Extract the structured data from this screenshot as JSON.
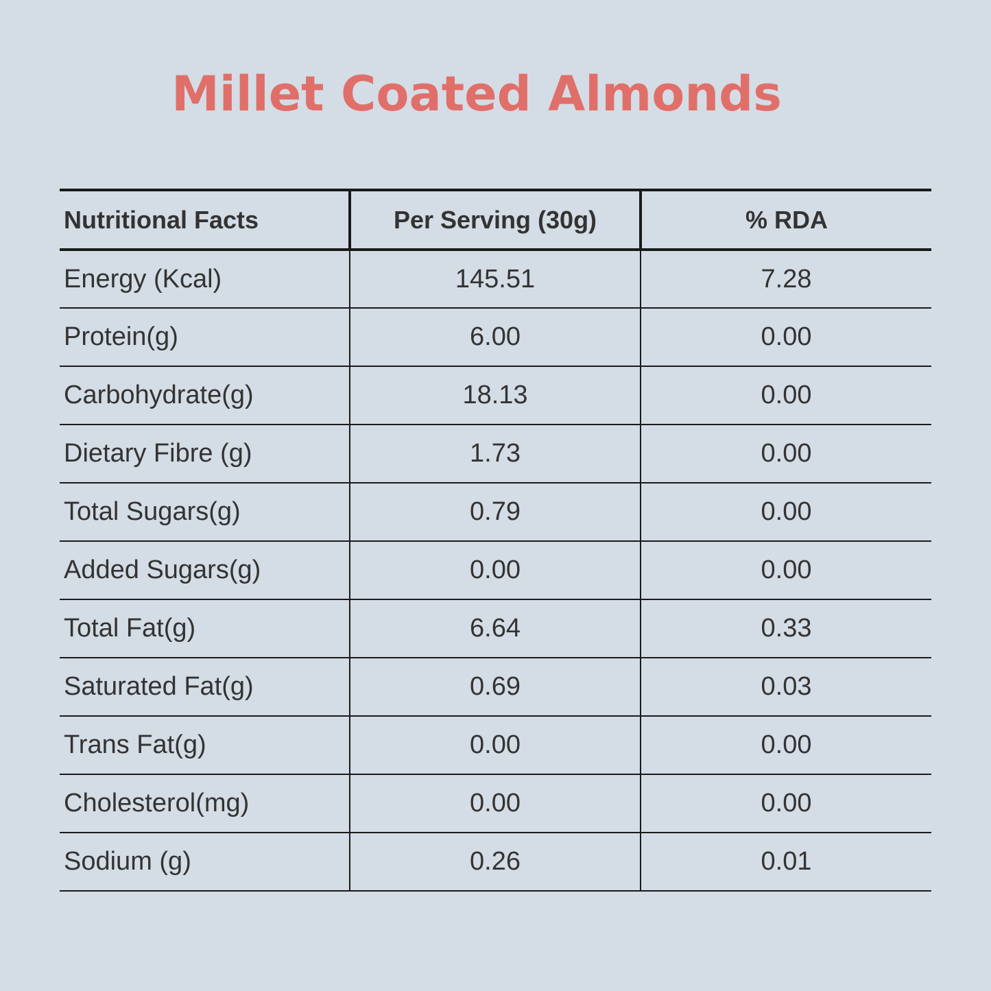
{
  "title": "Millet Coated Almonds",
  "colors": {
    "background": "#d4dce5",
    "title": "#e06f6a",
    "text": "#333333",
    "rules": "#1a1a1a"
  },
  "table": {
    "headers": [
      "Nutritional Facts",
      "Per Serving (30g)",
      "% RDA"
    ],
    "rows": [
      [
        "Energy (Kcal)",
        "145.51",
        "7.28"
      ],
      [
        "Protein(g)",
        "6.00",
        "0.00"
      ],
      [
        "Carbohydrate(g)",
        "18.13",
        "0.00"
      ],
      [
        "Dietary Fibre (g)",
        "1.73",
        "0.00"
      ],
      [
        "Total Sugars(g)",
        "0.79",
        "0.00"
      ],
      [
        "Added Sugars(g)",
        "0.00",
        "0.00"
      ],
      [
        "Total Fat(g)",
        "6.64",
        "0.33"
      ],
      [
        "Saturated Fat(g)",
        "0.69",
        "0.03"
      ],
      [
        "Trans Fat(g)",
        "0.00",
        "0.00"
      ],
      [
        "Cholesterol(mg)",
        "0.00",
        "0.00"
      ],
      [
        "Sodium (g)",
        "0.26",
        "0.01"
      ]
    ]
  }
}
